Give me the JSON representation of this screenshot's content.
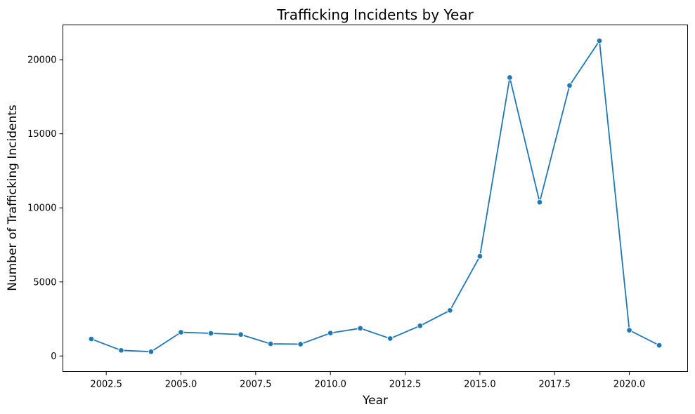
{
  "chart_data": {
    "type": "line",
    "title": "Trafficking Incidents by Year",
    "xlabel": "Year",
    "ylabel": "Number of Trafficking Incidents",
    "xlim": [
      2001.05,
      2021.95
    ],
    "ylim": [
      -1050,
      22350
    ],
    "x_ticks": [
      2002.5,
      2005.0,
      2007.5,
      2010.0,
      2012.5,
      2015.0,
      2017.5,
      2020.0
    ],
    "x_tick_labels": [
      "2002.5",
      "2005.0",
      "2007.5",
      "2010.0",
      "2012.5",
      "2015.0",
      "2017.5",
      "2020.0"
    ],
    "y_ticks": [
      0,
      5000,
      10000,
      15000,
      20000
    ],
    "y_tick_labels": [
      "0",
      "5000",
      "10000",
      "15000",
      "20000"
    ],
    "grid": false,
    "legend": "none",
    "series": [
      {
        "color": "#1f77b4",
        "marker": "circle",
        "x": [
          2002,
          2003,
          2004,
          2005,
          2006,
          2007,
          2008,
          2009,
          2010,
          2011,
          2012,
          2013,
          2014,
          2015,
          2016,
          2017,
          2018,
          2019,
          2020,
          2021
        ],
        "y": [
          1150,
          380,
          290,
          1600,
          1530,
          1450,
          820,
          800,
          1550,
          1870,
          1180,
          2040,
          3080,
          6730,
          18800,
          10380,
          18260,
          21280,
          1740,
          720
        ]
      }
    ]
  }
}
